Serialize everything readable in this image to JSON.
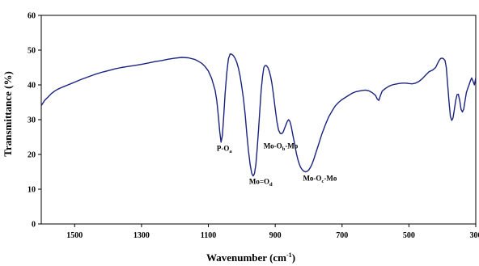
{
  "chart_data": {
    "type": "line",
    "xlabel": "Wavenumber (cm",
    "xlabel_sup": "-1",
    "xlabel_end": ")",
    "ylabel": "Transmittance (%)",
    "xlim": [
      1600,
      300
    ],
    "ylim": [
      0,
      60
    ],
    "x_ticks": [
      1500,
      1300,
      1100,
      900,
      700,
      500,
      300
    ],
    "y_ticks": [
      0,
      10,
      20,
      30,
      40,
      50,
      60
    ],
    "grid": false,
    "line_color": "#1a237e",
    "series": [
      {
        "x": [
          1600,
          1590,
          1580,
          1570,
          1560,
          1550,
          1540,
          1530,
          1520,
          1510,
          1500,
          1480,
          1460,
          1440,
          1420,
          1400,
          1380,
          1360,
          1340,
          1320,
          1300,
          1280,
          1260,
          1240,
          1220,
          1200,
          1180,
          1160,
          1140,
          1130,
          1120,
          1110,
          1100,
          1090,
          1080,
          1075,
          1070,
          1066,
          1062,
          1058,
          1054,
          1050,
          1045,
          1040,
          1035,
          1030,
          1025,
          1020,
          1015,
          1010,
          1005,
          1000,
          995,
          990,
          985,
          980,
          975,
          970,
          966,
          962,
          958,
          954,
          950,
          946,
          942,
          938,
          934,
          930,
          926,
          922,
          918,
          914,
          910,
          905,
          900,
          895,
          890,
          885,
          880,
          876,
          872,
          868,
          864,
          860,
          856,
          852,
          848,
          844,
          840,
          836,
          832,
          828,
          824,
          820,
          815,
          810,
          805,
          800,
          795,
          790,
          785,
          780,
          775,
          770,
          765,
          760,
          750,
          740,
          730,
          720,
          710,
          700,
          690,
          680,
          670,
          660,
          650,
          640,
          630,
          620,
          610,
          600,
          595,
          590,
          585,
          580,
          570,
          560,
          550,
          540,
          530,
          520,
          510,
          500,
          490,
          480,
          470,
          460,
          450,
          440,
          430,
          420,
          415,
          410,
          405,
          400,
          396,
          392,
          388,
          384,
          380,
          376,
          372,
          368,
          364,
          360,
          356,
          352,
          348,
          344,
          340,
          336,
          332,
          328,
          324,
          320,
          316,
          312,
          308,
          304,
          300
        ],
        "y": [
          34,
          35.5,
          36.5,
          37.5,
          38.2,
          38.8,
          39.2,
          39.6,
          40.0,
          40.4,
          40.8,
          41.6,
          42.3,
          43.0,
          43.6,
          44.1,
          44.6,
          45.0,
          45.3,
          45.6,
          45.9,
          46.3,
          46.7,
          47.0,
          47.4,
          47.7,
          47.9,
          47.8,
          47.3,
          46.8,
          46.2,
          45.3,
          44.0,
          41.8,
          38.5,
          35.5,
          31.0,
          26.5,
          23.5,
          25.5,
          31.0,
          37.5,
          43.5,
          47.5,
          48.9,
          48.8,
          48.4,
          47.6,
          46.5,
          44.8,
          42.5,
          39.5,
          36.0,
          31.5,
          26.0,
          21.0,
          17.0,
          14.5,
          13.8,
          14.5,
          17.0,
          21.5,
          27.0,
          33.0,
          38.5,
          42.5,
          45.0,
          45.6,
          45.5,
          45.0,
          44.0,
          42.5,
          40.5,
          37.0,
          33.0,
          29.5,
          27.0,
          26.0,
          26.0,
          26.5,
          27.5,
          28.5,
          29.5,
          30.0,
          29.5,
          28.0,
          26.0,
          24.0,
          22.0,
          20.0,
          18.5,
          17.2,
          16.3,
          15.7,
          15.2,
          15.0,
          15.1,
          15.5,
          16.2,
          17.2,
          18.5,
          20.0,
          21.5,
          23.0,
          24.5,
          26.0,
          28.5,
          30.8,
          32.5,
          34.0,
          35.0,
          35.8,
          36.4,
          37.0,
          37.6,
          38.0,
          38.2,
          38.4,
          38.5,
          38.3,
          37.8,
          37.0,
          36.0,
          35.5,
          37.0,
          38.2,
          39.0,
          39.6,
          40.0,
          40.2,
          40.4,
          40.5,
          40.5,
          40.4,
          40.3,
          40.5,
          41.0,
          41.8,
          42.8,
          43.8,
          44.2,
          45.0,
          46.0,
          47.0,
          47.6,
          47.7,
          47.5,
          47.0,
          45.0,
          40.0,
          35.0,
          31.0,
          29.8,
          30.5,
          33.0,
          35.5,
          37.2,
          37.3,
          35.5,
          33.0,
          32.2,
          33.0,
          35.5,
          37.8,
          39.0,
          40.0,
          41.2,
          42.0,
          41.0,
          40.0,
          42.0
        ]
      }
    ],
    "annotations": [
      {
        "text": "P-O",
        "sub": "a",
        "x": 1075,
        "y": 21.0
      },
      {
        "text": "Mo=O",
        "sub": "d",
        "x": 978,
        "y": 11.5
      },
      {
        "text": "Mo-O",
        "sub": "b",
        "tail": "-Mo",
        "x": 935,
        "y": 21.8
      },
      {
        "text": "Mo-O",
        "sub": "c",
        "tail": "-Mo",
        "x": 817,
        "y": 12.5
      }
    ]
  }
}
